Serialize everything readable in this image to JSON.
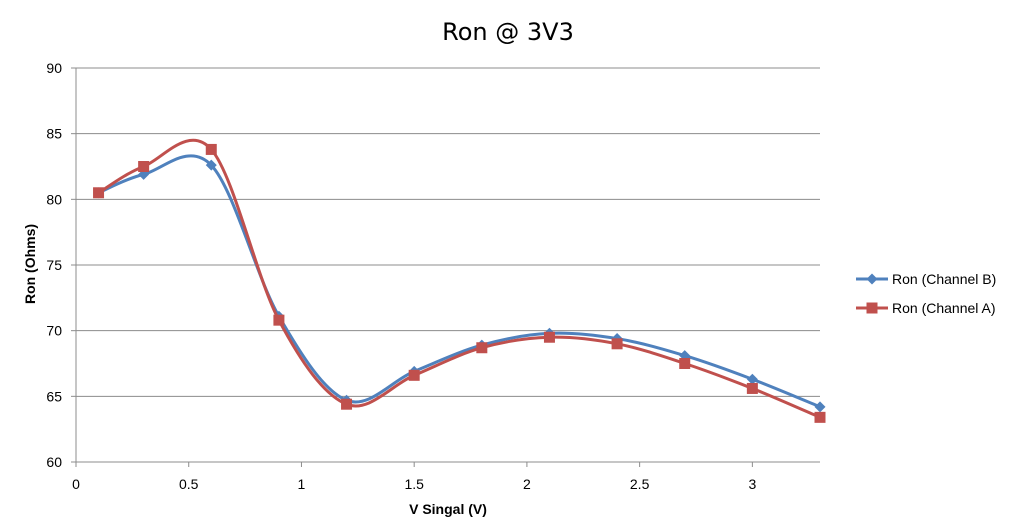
{
  "chart_data": {
    "type": "line",
    "title": "Ron @ 3V3",
    "xlabel": "V Singal (V)",
    "ylabel": "Ron (Ohms)",
    "xlim": [
      0,
      3.3
    ],
    "ylim": [
      60,
      90
    ],
    "x_ticks": [
      0,
      0.5,
      1,
      1.5,
      2,
      2.5,
      3
    ],
    "x_tick_labels": [
      "0",
      "0.5",
      "1",
      "1.5",
      "2",
      "2.5",
      "3"
    ],
    "y_ticks": [
      60,
      65,
      70,
      75,
      80,
      85,
      90
    ],
    "y_tick_labels": [
      "60",
      "65",
      "70",
      "75",
      "80",
      "85",
      "90"
    ],
    "grid": "horizontal",
    "legend": "right",
    "smooth": true,
    "series": [
      {
        "name": "Ron (Channel B)",
        "color": "#4F81BD",
        "marker": "diamond",
        "x": [
          0.1,
          0.3,
          0.6,
          0.9,
          1.2,
          1.5,
          1.8,
          2.1,
          2.4,
          2.7,
          3.0,
          3.3
        ],
        "values": [
          80.5,
          81.9,
          82.6,
          71.1,
          64.7,
          66.9,
          68.9,
          69.8,
          69.4,
          68.1,
          66.3,
          64.2
        ]
      },
      {
        "name": "Ron (Channel A)",
        "color": "#C0504D",
        "marker": "square",
        "x": [
          0.1,
          0.3,
          0.6,
          0.9,
          1.2,
          1.5,
          1.8,
          2.1,
          2.4,
          2.7,
          3.0,
          3.3
        ],
        "values": [
          80.5,
          82.5,
          83.8,
          70.8,
          64.4,
          66.6,
          68.7,
          69.5,
          69.0,
          67.5,
          65.6,
          63.4
        ]
      }
    ]
  }
}
